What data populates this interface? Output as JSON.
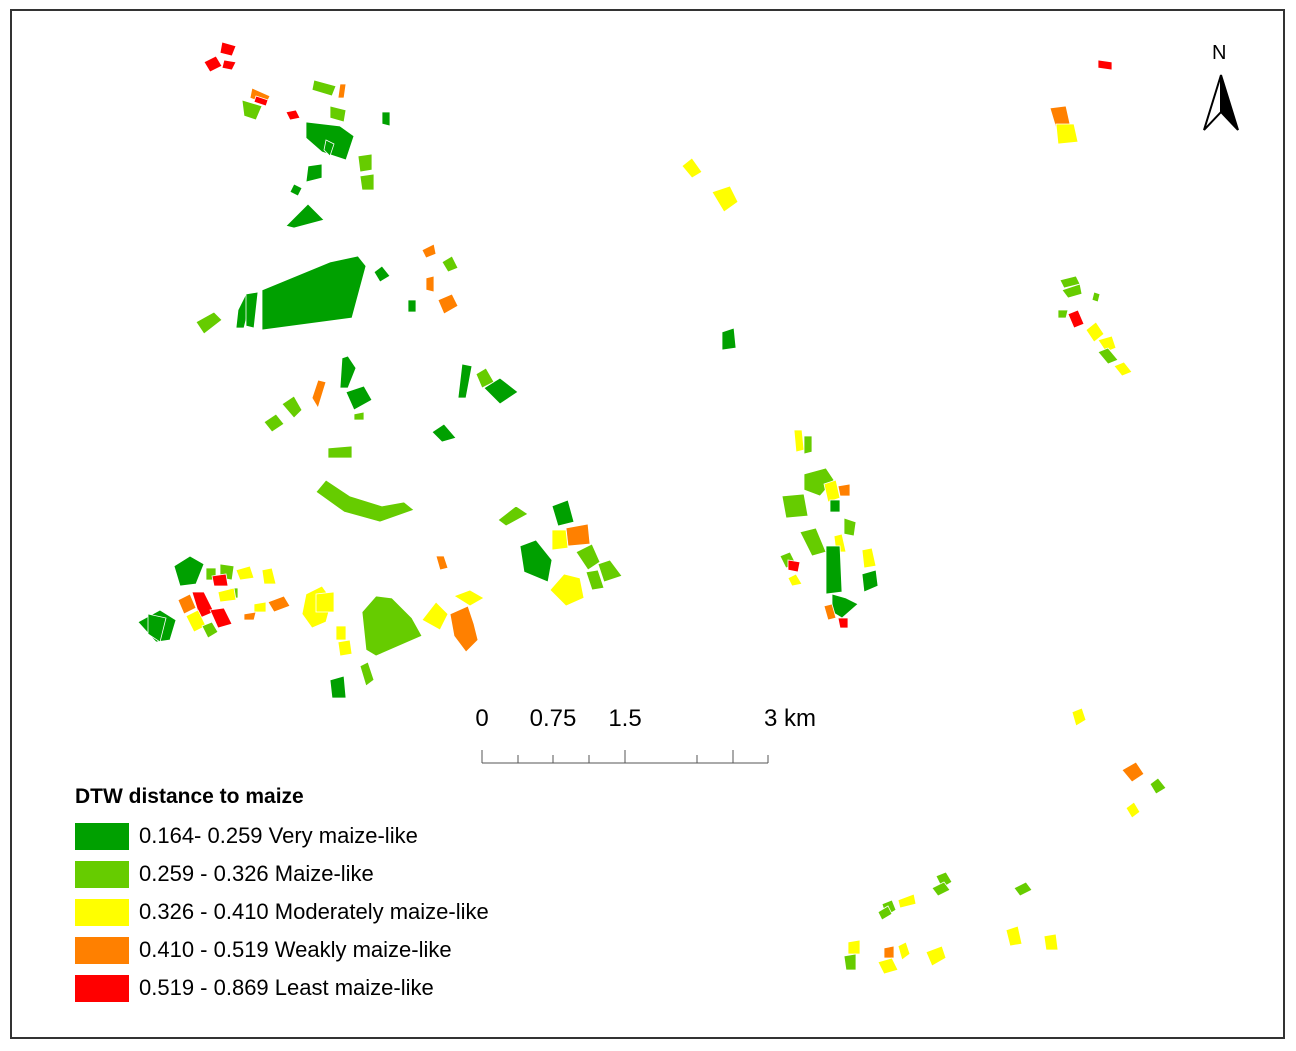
{
  "north_arrow": {
    "label": "N"
  },
  "scale_bar": {
    "ticks": [
      "0",
      "0.75",
      "1.5",
      "3 km"
    ]
  },
  "legend": {
    "title": "DTW distance to maize",
    "items": [
      {
        "label": "0.164- 0.259 Very maize-like",
        "color": "#00A000",
        "class": "very"
      },
      {
        "label": "0.259 - 0.326 Maize-like",
        "color": "#66CC00",
        "class": "maize"
      },
      {
        "label": "0.326 - 0.410 Moderately maize-like",
        "color": "#FFFF00",
        "class": "moderate"
      },
      {
        "label": "0.410 - 0.519 Weakly maize-like",
        "color": "#FF8000",
        "class": "weak"
      },
      {
        "label": "0.519 - 0.869 Least maize-like",
        "color": "#FF0000",
        "class": "least"
      }
    ]
  }
}
